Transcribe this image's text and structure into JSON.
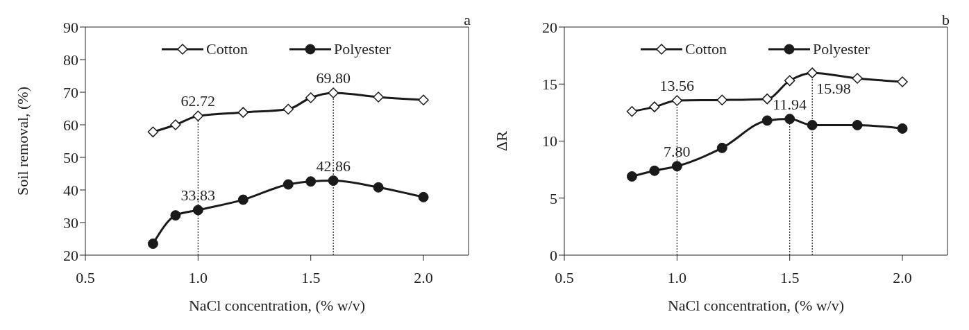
{
  "chart_data": [
    {
      "type": "line",
      "title": "a",
      "xlabel": "NaCl concentration, (% w/v)",
      "ylabel": "Soil removal, (%)",
      "xlim": [
        0.5,
        2.2
      ],
      "xticks": [
        {
          "value": 0.5,
          "label": "0.5"
        },
        {
          "value": 1.0,
          "label": "1.0"
        },
        {
          "value": 1.5,
          "label": "1.5"
        },
        {
          "value": 2.0,
          "label": "2.0"
        }
      ],
      "ylim": [
        20,
        90
      ],
      "yticks": [
        20,
        30,
        40,
        50,
        60,
        70,
        80,
        90
      ],
      "legend": "top",
      "grid": false,
      "series": [
        {
          "name": "Cotton",
          "color": "#1a1a1a",
          "marker": "diamond",
          "x": [
            0.8,
            0.9,
            1.0,
            1.2,
            1.4,
            1.5,
            1.6,
            1.8,
            2.0
          ],
          "values": [
            57.8,
            60.0,
            62.72,
            63.8,
            64.8,
            68.3,
            69.8,
            68.5,
            67.6
          ]
        },
        {
          "name": "Polyester",
          "color": "#1a1a1a",
          "marker": "circle",
          "x": [
            0.8,
            0.9,
            1.0,
            1.2,
            1.4,
            1.5,
            1.6,
            1.8,
            2.0
          ],
          "values": [
            23.5,
            32.2,
            33.83,
            37.0,
            41.7,
            42.6,
            42.86,
            40.8,
            37.8
          ]
        }
      ],
      "annotations": [
        {
          "text": "62.72",
          "x": 1.0,
          "y": 62.72
        },
        {
          "text": "69.80",
          "x": 1.6,
          "y": 69.8
        },
        {
          "text": "33.83",
          "x": 1.0,
          "y": 33.83
        },
        {
          "text": "42.86",
          "x": 1.6,
          "y": 42.86
        }
      ],
      "ref_lines": [
        {
          "axis": "x",
          "value": 1.0,
          "line_style": "dotted"
        },
        {
          "axis": "x",
          "value": 1.6,
          "line_style": "dotted"
        }
      ]
    },
    {
      "type": "line",
      "title": "b",
      "xlabel": "NaCl concentration, (% w/v)",
      "ylabel": "ΔR",
      "xlim": [
        0.5,
        2.2
      ],
      "xticks": [
        {
          "value": 0.5,
          "label": "0.5"
        },
        {
          "value": 1.0,
          "label": "1.0"
        },
        {
          "value": 1.5,
          "label": "1.5"
        },
        {
          "value": 2.0,
          "label": "2.0"
        }
      ],
      "ylim": [
        0,
        20
      ],
      "yticks": [
        0,
        5,
        10,
        15,
        20
      ],
      "legend": "top",
      "grid": false,
      "series": [
        {
          "name": "Cotton",
          "color": "#1a1a1a",
          "marker": "diamond",
          "x": [
            0.8,
            0.9,
            1.0,
            1.2,
            1.4,
            1.5,
            1.6,
            1.8,
            2.0
          ],
          "values": [
            12.6,
            13.0,
            13.56,
            13.6,
            13.7,
            15.3,
            15.98,
            15.5,
            15.2
          ]
        },
        {
          "name": "Polyester",
          "color": "#1a1a1a",
          "marker": "circle",
          "x": [
            0.8,
            0.9,
            1.0,
            1.2,
            1.4,
            1.5,
            1.6,
            1.8,
            2.0
          ],
          "values": [
            6.9,
            7.4,
            7.8,
            9.4,
            11.8,
            11.94,
            11.4,
            11.4,
            11.1
          ]
        }
      ],
      "annotations": [
        {
          "text": "13.56",
          "x": 1.0,
          "y": 13.56
        },
        {
          "text": "15.98",
          "x": 1.6,
          "y": 15.98
        },
        {
          "text": "7.80",
          "x": 1.0,
          "y": 7.8
        },
        {
          "text": "11.94",
          "x": 1.5,
          "y": 11.94
        }
      ],
      "ref_lines": [
        {
          "axis": "x",
          "value": 1.0,
          "line_style": "dotted"
        },
        {
          "axis": "x",
          "value": 1.5,
          "line_style": "dotted"
        },
        {
          "axis": "x",
          "value": 1.6,
          "line_style": "dotted"
        }
      ]
    }
  ]
}
